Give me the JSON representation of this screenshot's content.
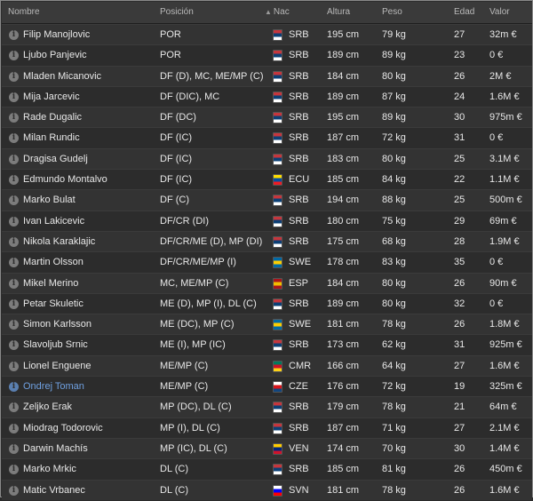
{
  "columns": {
    "name": "Nombre",
    "position": "Posición",
    "nationality": "Nac",
    "height": "Altura",
    "weight": "Peso",
    "age": "Edad",
    "value": "Valor"
  },
  "sort_icon": "sort-up-icon",
  "flag_colors": {
    "SRB": [
      "#c6363c",
      "#0c4076",
      "#ffffff"
    ],
    "ECU": [
      "#ffdd00",
      "#034ea2",
      "#ed1c24"
    ],
    "SWE": [
      "#006aa7",
      "#fecc00",
      "#006aa7"
    ],
    "ESP": [
      "#aa151b",
      "#f1bf00",
      "#aa151b"
    ],
    "CMR": [
      "#007a5e",
      "#ce1126",
      "#fcd116"
    ],
    "CZE": [
      "#ffffff",
      "#d7141a",
      "#11457e"
    ],
    "VEN": [
      "#ffcc00",
      "#00247d",
      "#cf142b"
    ],
    "SVN": [
      "#ffffff",
      "#0000ff",
      "#ff0000"
    ]
  },
  "players": [
    {
      "name": "Filip Manojlovic",
      "position": "POR",
      "nationality": "SRB",
      "height": "195 cm",
      "weight": "79 kg",
      "age": "27",
      "value": "32m €"
    },
    {
      "name": "Ljubo Panjevic",
      "position": "POR",
      "nationality": "SRB",
      "height": "189 cm",
      "weight": "89 kg",
      "age": "23",
      "value": "0 €"
    },
    {
      "name": "Mladen Micanovic",
      "position": "DF (D), MC, ME/MP (C)",
      "nationality": "SRB",
      "height": "184 cm",
      "weight": "80 kg",
      "age": "26",
      "value": "2M €"
    },
    {
      "name": "Mija Jarcevic",
      "position": "DF (DIC), MC",
      "nationality": "SRB",
      "height": "189 cm",
      "weight": "87 kg",
      "age": "24",
      "value": "1.6M €"
    },
    {
      "name": "Rade Dugalic",
      "position": "DF (DC)",
      "nationality": "SRB",
      "height": "195 cm",
      "weight": "89 kg",
      "age": "30",
      "value": "975m €"
    },
    {
      "name": "Milan Rundic",
      "position": "DF (IC)",
      "nationality": "SRB",
      "height": "187 cm",
      "weight": "72 kg",
      "age": "31",
      "value": "0 €"
    },
    {
      "name": "Dragisa Gudelj",
      "position": "DF (IC)",
      "nationality": "SRB",
      "height": "183 cm",
      "weight": "80 kg",
      "age": "25",
      "value": "3.1M €"
    },
    {
      "name": "Edmundo Montalvo",
      "position": "DF (IC)",
      "nationality": "ECU",
      "height": "185 cm",
      "weight": "84 kg",
      "age": "22",
      "value": "1.1M €"
    },
    {
      "name": "Marko Bulat",
      "position": "DF (C)",
      "nationality": "SRB",
      "height": "194 cm",
      "weight": "88 kg",
      "age": "25",
      "value": "500m €"
    },
    {
      "name": "Ivan Lakicevic",
      "position": "DF/CR (DI)",
      "nationality": "SRB",
      "height": "180 cm",
      "weight": "75 kg",
      "age": "29",
      "value": "69m €"
    },
    {
      "name": "Nikola Karaklajic",
      "position": "DF/CR/ME (D), MP (DI)",
      "nationality": "SRB",
      "height": "175 cm",
      "weight": "68 kg",
      "age": "28",
      "value": "1.9M €"
    },
    {
      "name": "Martin Olsson",
      "position": "DF/CR/ME/MP (I)",
      "nationality": "SWE",
      "height": "178 cm",
      "weight": "83 kg",
      "age": "35",
      "value": "0 €"
    },
    {
      "name": "Mikel Merino",
      "position": "MC, ME/MP (C)",
      "nationality": "ESP",
      "height": "184 cm",
      "weight": "80 kg",
      "age": "26",
      "value": "90m €"
    },
    {
      "name": "Petar Skuletic",
      "position": "ME (D), MP (I), DL (C)",
      "nationality": "SRB",
      "height": "189 cm",
      "weight": "80 kg",
      "age": "32",
      "value": "0 €"
    },
    {
      "name": "Simon Karlsson",
      "position": "ME (DC), MP (C)",
      "nationality": "SWE",
      "height": "181 cm",
      "weight": "78 kg",
      "age": "26",
      "value": "1.8M €"
    },
    {
      "name": "Slavoljub Srnic",
      "position": "ME (I), MP (IC)",
      "nationality": "SRB",
      "height": "173 cm",
      "weight": "62 kg",
      "age": "31",
      "value": "925m €"
    },
    {
      "name": "Lionel Enguene",
      "position": "ME/MP (C)",
      "nationality": "CMR",
      "height": "166 cm",
      "weight": "64 kg",
      "age": "27",
      "value": "1.6M €"
    },
    {
      "name": "Ondrej Toman",
      "position": "ME/MP (C)",
      "nationality": "CZE",
      "height": "176 cm",
      "weight": "72 kg",
      "age": "19",
      "value": "325m €",
      "highlight": true
    },
    {
      "name": "Zeljko Erak",
      "position": "MP (DC), DL (C)",
      "nationality": "SRB",
      "height": "179 cm",
      "weight": "78 kg",
      "age": "21",
      "value": "64m €"
    },
    {
      "name": "Miodrag Todorovic",
      "position": "MP (I), DL (C)",
      "nationality": "SRB",
      "height": "187 cm",
      "weight": "71 kg",
      "age": "27",
      "value": "2.1M €"
    },
    {
      "name": "Darwin Machís",
      "position": "MP (IC), DL (C)",
      "nationality": "VEN",
      "height": "174 cm",
      "weight": "70 kg",
      "age": "30",
      "value": "1.4M €"
    },
    {
      "name": "Marko Mrkic",
      "position": "DL (C)",
      "nationality": "SRB",
      "height": "185 cm",
      "weight": "81 kg",
      "age": "26",
      "value": "450m €"
    },
    {
      "name": "Matic Vrbanec",
      "position": "DL (C)",
      "nationality": "SVN",
      "height": "181 cm",
      "weight": "78 kg",
      "age": "26",
      "value": "1.6M €"
    }
  ]
}
